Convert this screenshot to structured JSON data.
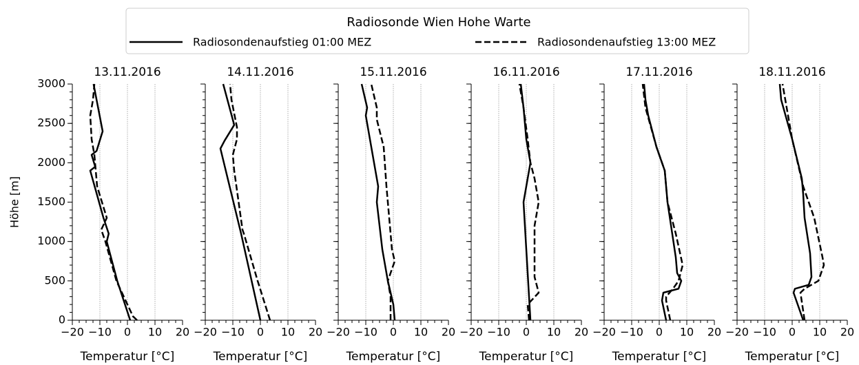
{
  "legend": {
    "title": "Radiosonde Wien Hohe Warte"
  },
  "chart_data": [
    {
      "type": "line",
      "title": "13.11.2016",
      "xlabel": "Temperatur [°C]",
      "ylabel": "Höhe [m]",
      "xlim": [
        -20,
        20
      ],
      "xticks": [
        {
          "value": -20,
          "label": "−20"
        },
        {
          "value": -10,
          "label": "−10"
        },
        0,
        10,
        20
      ],
      "xminor": 2.5,
      "ylim": [
        0,
        3000
      ],
      "yticks": [
        0,
        500,
        1000,
        1500,
        2000,
        2500,
        3000
      ],
      "yminor": 100,
      "grid": "x",
      "series": [
        {
          "name": "Radiosondenaufstieg 01:00 MEZ",
          "color": "#000000",
          "dash": "solid",
          "x": [
            1,
            -3.7,
            -7.5,
            -6.8,
            -8.7,
            -13.5,
            -11.7,
            -13,
            -11.2,
            -9,
            -12.3
          ],
          "values": [
            0,
            500,
            1000,
            1100,
            1300,
            1900,
            1950,
            2100,
            2150,
            2400,
            3000
          ]
        },
        {
          "name": "Radiosondenaufstieg 13:00 MEZ",
          "color": "#000000",
          "dash": "dashed",
          "x": [
            3.5,
            2,
            -4,
            -8,
            -9.5,
            -7.5,
            -11,
            -12,
            -13,
            -13.5,
            -12.5,
            -12
          ],
          "values": [
            0,
            50,
            500,
            1000,
            1150,
            1300,
            1700,
            2100,
            2300,
            2600,
            2800,
            3000
          ]
        }
      ]
    },
    {
      "type": "line",
      "title": "14.11.2016",
      "xlabel": "Temperatur [°C]",
      "xlim": [
        -20,
        20
      ],
      "xticks": [
        {
          "value": -20,
          "label": "−20"
        },
        {
          "value": -10,
          "label": "−10"
        },
        0,
        10,
        20
      ],
      "xminor": 2.5,
      "ylim": [
        0,
        3000
      ],
      "yticks": [
        0,
        500,
        1000,
        1500,
        2000,
        2500,
        3000
      ],
      "yminor": 100,
      "grid": "x",
      "series": [
        {
          "color": "#000000",
          "dash": "solid",
          "x": [
            0,
            -7,
            -14.5,
            -13,
            -9.5,
            -13.5
          ],
          "values": [
            0,
            1100,
            2180,
            2280,
            2480,
            3000
          ]
        },
        {
          "color": "#000000",
          "dash": "dashed",
          "x": [
            3.5,
            -1,
            -6,
            -6.5,
            -9.5,
            -10,
            -8.5,
            -8.5,
            -10.5,
            -11
          ],
          "values": [
            0,
            500,
            1100,
            1150,
            1900,
            2100,
            2300,
            2450,
            2800,
            3000
          ]
        }
      ]
    },
    {
      "type": "line",
      "title": "15.11.2016",
      "xlabel": "Temperatur [°C]",
      "xlim": [
        -20,
        20
      ],
      "xticks": [
        {
          "value": -20,
          "label": "−20"
        },
        {
          "value": -10,
          "label": "−10"
        },
        0,
        10,
        20
      ],
      "xminor": 2.5,
      "ylim": [
        0,
        3000
      ],
      "yticks": [
        0,
        500,
        1000,
        1500,
        2000,
        2500,
        3000
      ],
      "yminor": 100,
      "grid": "x",
      "series": [
        {
          "color": "#000000",
          "dash": "solid",
          "x": [
            0.5,
            0,
            -2,
            -4,
            -6,
            -5.5,
            -10,
            -9.5,
            -11.5
          ],
          "values": [
            0,
            200,
            500,
            900,
            1500,
            1700,
            2600,
            2700,
            3000
          ]
        },
        {
          "color": "#000000",
          "dash": "dashed",
          "x": [
            -1,
            -1,
            -2,
            0.5,
            -0.5,
            -1.5,
            -2.5,
            -3.5,
            -6,
            -6,
            -8
          ],
          "values": [
            0,
            300,
            500,
            750,
            900,
            1300,
            1700,
            2200,
            2550,
            2700,
            3000
          ]
        }
      ]
    },
    {
      "type": "line",
      "title": "16.11.2016",
      "xlabel": "Temperatur [°C]",
      "xlim": [
        -20,
        20
      ],
      "xticks": [
        {
          "value": -20,
          "label": "−20"
        },
        {
          "value": -10,
          "label": "−10"
        },
        0,
        10,
        20
      ],
      "xminor": 2.5,
      "ylim": [
        0,
        3000
      ],
      "yticks": [
        0,
        500,
        1000,
        1500,
        2000,
        2500,
        3000
      ],
      "yminor": 100,
      "grid": "x",
      "series": [
        {
          "color": "#000000",
          "dash": "solid",
          "x": [
            1.5,
            1,
            0,
            -1,
            1,
            1.5,
            0,
            -1,
            -2
          ],
          "values": [
            0,
            300,
            900,
            1500,
            1900,
            2000,
            2300,
            2700,
            3000
          ]
        },
        {
          "color": "#000000",
          "dash": "dashed",
          "x": [
            1,
            0.5,
            4.5,
            3,
            3,
            4.5,
            3,
            1.5,
            0.5,
            -1,
            -2.5
          ],
          "values": [
            0,
            200,
            350,
            550,
            1200,
            1500,
            1800,
            2000,
            2300,
            2700,
            3000
          ]
        }
      ]
    },
    {
      "type": "line",
      "title": "17.11.2016",
      "xlabel": "Temperatur [°C]",
      "xlim": [
        -20,
        20
      ],
      "xticks": [
        {
          "value": -20,
          "label": "−20"
        },
        {
          "value": -10,
          "label": "−10"
        },
        0,
        10,
        20
      ],
      "xminor": 2.5,
      "ylim": [
        0,
        3000
      ],
      "yticks": [
        0,
        500,
        1000,
        1500,
        2000,
        2500,
        3000
      ],
      "yminor": 100,
      "grid": "x",
      "series": [
        {
          "color": "#000000",
          "dash": "solid",
          "x": [
            2.5,
            1,
            1.5,
            7,
            8,
            6.5,
            6,
            3,
            2,
            -1,
            -4,
            -5,
            -5.5
          ],
          "values": [
            0,
            250,
            350,
            400,
            500,
            600,
            800,
            1500,
            1900,
            2200,
            2600,
            2800,
            3000
          ]
        },
        {
          "color": "#000000",
          "dash": "dashed",
          "x": [
            4,
            2.5,
            2.5,
            5,
            7,
            8.5,
            6,
            3,
            2,
            -1,
            -5,
            -6
          ],
          "values": [
            0,
            250,
            300,
            400,
            500,
            700,
            1100,
            1500,
            1900,
            2200,
            2700,
            3000
          ]
        }
      ]
    },
    {
      "type": "line",
      "title": "18.11.2016",
      "xlabel": "Temperatur [°C]",
      "xlim": [
        -20,
        20
      ],
      "xticks": [
        {
          "value": -20,
          "label": "−20"
        },
        {
          "value": -10,
          "label": "−10"
        },
        0,
        10,
        20
      ],
      "xminor": 2.5,
      "ylim": [
        0,
        3000
      ],
      "yticks": [
        0,
        500,
        1000,
        1500,
        2000,
        2500,
        3000
      ],
      "yminor": 100,
      "grid": "x",
      "series": [
        {
          "color": "#000000",
          "dash": "solid",
          "x": [
            4,
            0.5,
            1,
            6,
            7,
            6.5,
            4.5,
            4,
            3.5,
            0,
            -4,
            -4.5
          ],
          "values": [
            0,
            350,
            400,
            450,
            550,
            850,
            1300,
            1600,
            1800,
            2300,
            2800,
            3000
          ]
        },
        {
          "color": "#000000",
          "dash": "dashed",
          "x": [
            4.5,
            3,
            4.5,
            9.5,
            11.5,
            11,
            8,
            4,
            0,
            -2.5,
            -3.5
          ],
          "values": [
            0,
            350,
            400,
            500,
            700,
            800,
            1300,
            1700,
            2300,
            2800,
            3000
          ]
        }
      ]
    }
  ]
}
